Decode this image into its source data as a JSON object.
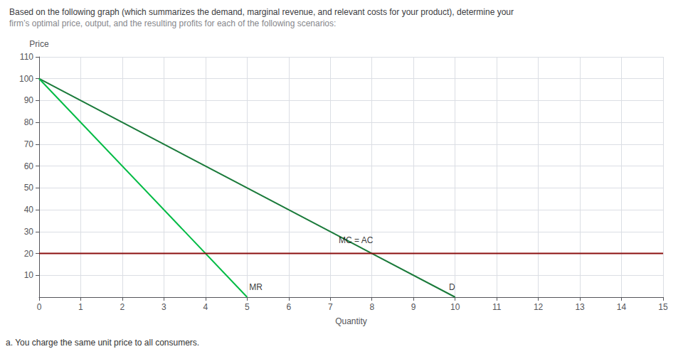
{
  "chart_data": {
    "type": "line",
    "title": "Based on the following graph (which summarizes the demand, marginal revenue, and relevant costs for your product), determine your",
    "subtitle": "firm’s optimal price, output, and the resulting profits for each of the following scenarios:",
    "xlabel": "Quantity",
    "ylabel": "Price",
    "footnote": "a. You charge the same unit price to all consumers.",
    "xlim": [
      0,
      15
    ],
    "ylim": [
      0,
      110
    ],
    "xticks": [
      0,
      1,
      2,
      3,
      4,
      5,
      6,
      7,
      8,
      9,
      10,
      11,
      12,
      13,
      14,
      15
    ],
    "yticks": [
      10,
      20,
      30,
      40,
      50,
      60,
      70,
      80,
      90,
      100,
      110
    ],
    "grid": true,
    "series": [
      {
        "color": "#1a7a3a",
        "x": [
          0,
          10
        ],
        "values": [
          100,
          0
        ]
      },
      {
        "color": "#00bb44",
        "x": [
          0,
          5
        ],
        "values": [
          100,
          0
        ]
      },
      {
        "color": "#8B1010",
        "x": [
          0,
          15
        ],
        "values": [
          20,
          20
        ]
      }
    ],
    "annotations": [
      {
        "text": "D",
        "x": 9.85,
        "y": 2.0
      },
      {
        "text": "MR",
        "x": 5.05,
        "y": 2.0
      },
      {
        "text": "MC = AC",
        "x": 7.2,
        "y": 23.5
      }
    ]
  }
}
